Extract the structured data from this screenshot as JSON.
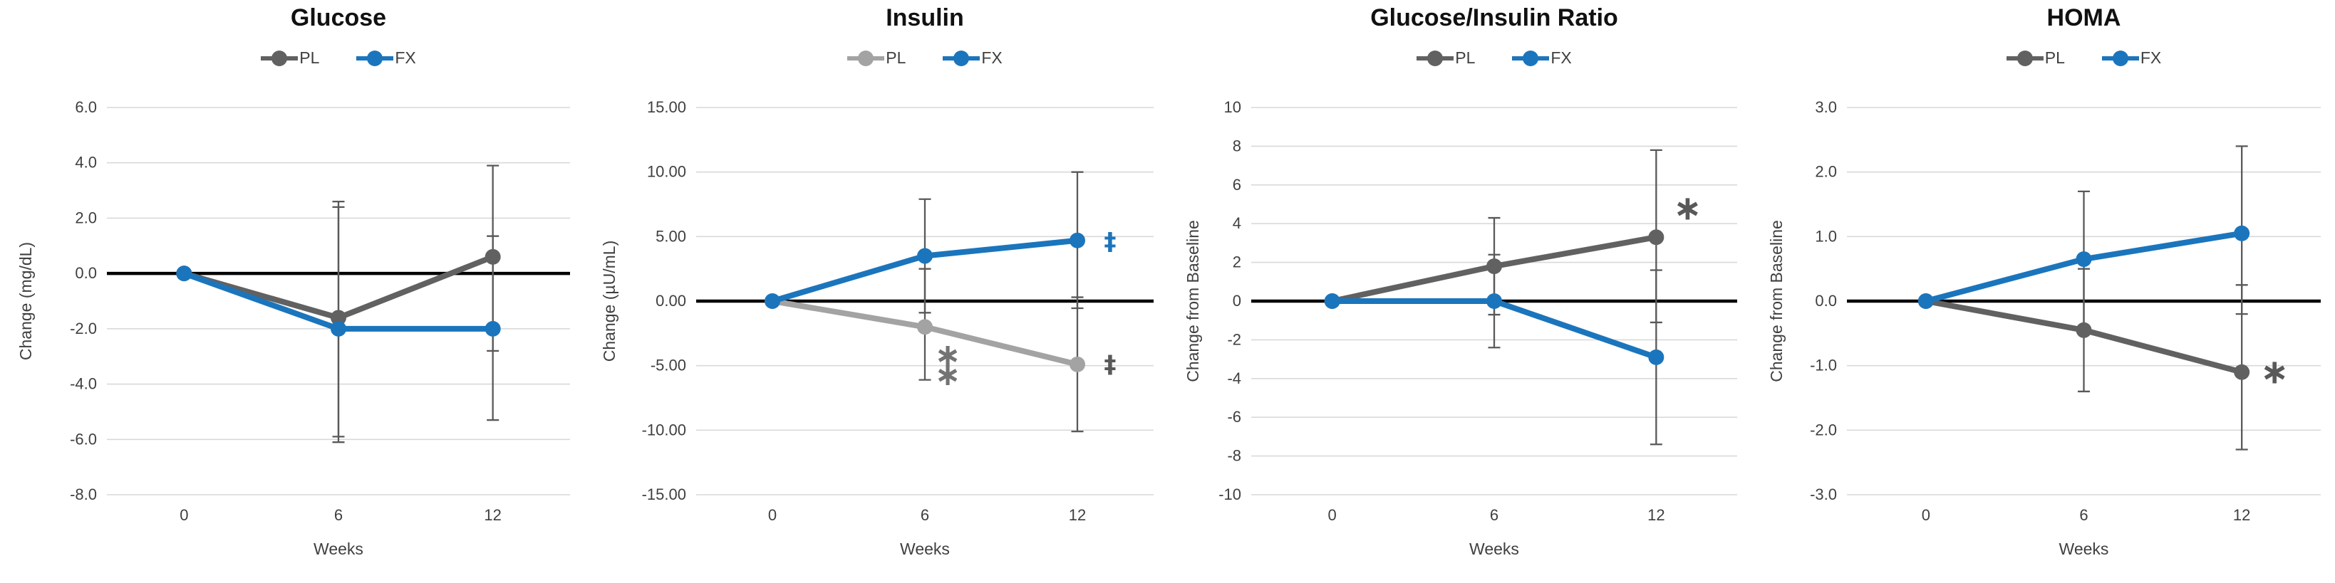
{
  "figure": {
    "background": "#FFFFFF",
    "groups_legend": [
      "PL",
      "FX"
    ]
  },
  "colors": {
    "fx_blue": "#1B75BC",
    "pl_dark_gray": "#616161",
    "pl_light_gray": "#A3A3A3",
    "error_bar": "#595959",
    "gridline": "#D9D9D9",
    "zero_line": "#000000",
    "tick_text": "#3F3F3F"
  },
  "chart_data": [
    {
      "type": "line",
      "title": "Glucose",
      "ylabel": "Change (mg/dL)",
      "xlabel": "Weeks",
      "x_categories": [
        "0",
        "6",
        "12"
      ],
      "x_values": [
        0,
        6,
        12
      ],
      "ylim": [
        -8,
        6
      ],
      "yticks": [
        6,
        4,
        2,
        0,
        -2,
        -4,
        -6,
        -8
      ],
      "ytick_labels": [
        "6.0",
        "4.0",
        "2.0",
        "0.0",
        "-2.0",
        "-4.0",
        "-6.0",
        "-8.0"
      ],
      "grid": true,
      "legend_position": "top",
      "series": [
        {
          "name": "PL",
          "color": "#616161",
          "values": [
            0,
            -1.6,
            0.6
          ],
          "error_low": [
            null,
            -5.9,
            -2.8
          ],
          "error_high": [
            null,
            2.6,
            3.9
          ]
        },
        {
          "name": "FX",
          "color": "#1B75BC",
          "values": [
            0,
            -2.0,
            -2.0
          ],
          "error_low": [
            null,
            -6.1,
            -5.3
          ],
          "error_high": [
            null,
            2.4,
            1.35
          ]
        }
      ],
      "annotations": []
    },
    {
      "type": "line",
      "title": "Insulin",
      "ylabel": "Change (µU/mL)",
      "xlabel": "Weeks",
      "x_categories": [
        "0",
        "6",
        "12"
      ],
      "x_values": [
        0,
        6,
        12
      ],
      "ylim": [
        -15,
        15
      ],
      "yticks": [
        15,
        10,
        5,
        0,
        -5,
        -10,
        -15
      ],
      "ytick_labels": [
        "15.00",
        "10.00",
        "5.00",
        "0.00",
        "-5.00",
        "-10.00",
        "-15.00"
      ],
      "grid": true,
      "legend_position": "top",
      "series": [
        {
          "name": "PL",
          "color": "#A3A3A3",
          "values": [
            0,
            -2.0,
            -4.9
          ],
          "error_low": [
            null,
            -6.1,
            -10.1
          ],
          "error_high": [
            null,
            2.5,
            0.3
          ]
        },
        {
          "name": "FX",
          "color": "#1B75BC",
          "values": [
            0,
            3.5,
            4.7
          ],
          "error_low": [
            null,
            -0.9,
            -0.55
          ],
          "error_high": [
            null,
            7.9,
            10.0
          ]
        }
      ],
      "annotations": [
        {
          "text": "∗",
          "x_index": 1,
          "y": -4.2,
          "dx": 32,
          "color": "#737373",
          "size": 44
        },
        {
          "text": "∗",
          "x_index": 1,
          "y": -5.7,
          "dx": 32,
          "color": "#737373",
          "size": 44
        },
        {
          "text": "‡",
          "x_index": 2,
          "y": 4.6,
          "dx": 46,
          "color": "#1B75BC",
          "size": 34
        },
        {
          "text": "‡",
          "x_index": 2,
          "y": -4.9,
          "dx": 46,
          "color": "#595959",
          "size": 34
        }
      ]
    },
    {
      "type": "line",
      "title": "Glucose/Insulin Ratio",
      "ylabel": "Change from Baseline",
      "xlabel": "Weeks",
      "x_categories": [
        "0",
        "6",
        "12"
      ],
      "x_values": [
        0,
        6,
        12
      ],
      "ylim": [
        -10,
        10
      ],
      "yticks": [
        10,
        8,
        6,
        4,
        2,
        0,
        -2,
        -4,
        -6,
        -8,
        -10
      ],
      "ytick_labels": [
        "10",
        "8",
        "6",
        "4",
        "2",
        "0",
        "-2",
        "-4",
        "-6",
        "-8",
        "-10"
      ],
      "grid": true,
      "legend_position": "top",
      "series": [
        {
          "name": "PL",
          "color": "#616161",
          "values": [
            0,
            1.8,
            3.3
          ],
          "error_low": [
            null,
            -0.7,
            -1.1
          ],
          "error_high": [
            null,
            4.3,
            7.8
          ]
        },
        {
          "name": "FX",
          "color": "#1B75BC",
          "values": [
            0,
            0.0,
            -2.9
          ],
          "error_low": [
            null,
            -2.4,
            -7.4
          ],
          "error_high": [
            null,
            2.4,
            1.6
          ]
        }
      ],
      "annotations": [
        {
          "text": "∗",
          "x_index": 2,
          "y": 4.8,
          "dx": 44,
          "color": "#595959",
          "size": 48
        }
      ]
    },
    {
      "type": "line",
      "title": "HOMA",
      "ylabel": "Change from Baseline",
      "xlabel": "Weeks",
      "x_categories": [
        "0",
        "6",
        "12"
      ],
      "x_values": [
        0,
        6,
        12
      ],
      "ylim": [
        -3,
        3
      ],
      "yticks": [
        3,
        2,
        1,
        0,
        -1,
        -2,
        -3
      ],
      "ytick_labels": [
        "3.0",
        "2.0",
        "1.0",
        "0.0",
        "-1.0",
        "-2.0",
        "-3.0"
      ],
      "grid": true,
      "legend_position": "top",
      "series": [
        {
          "name": "PL",
          "color": "#616161",
          "values": [
            0,
            -0.45,
            -1.1
          ],
          "error_low": [
            null,
            -1.4,
            -2.3
          ],
          "error_high": [
            null,
            0.5,
            0.25
          ]
        },
        {
          "name": "FX",
          "color": "#1B75BC",
          "values": [
            0,
            0.65,
            1.05
          ],
          "error_low": [
            null,
            -0.4,
            -0.2
          ],
          "error_high": [
            null,
            1.7,
            2.4
          ]
        }
      ],
      "annotations": [
        {
          "text": "∗",
          "x_index": 2,
          "y": -1.1,
          "dx": 46,
          "color": "#595959",
          "size": 48
        }
      ]
    }
  ]
}
